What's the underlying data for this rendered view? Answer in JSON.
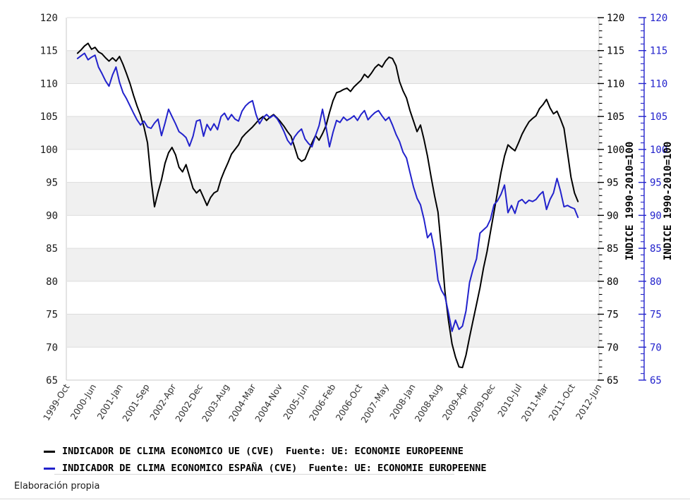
{
  "page": {
    "background": "#ffffff"
  },
  "footer": {
    "text": "Elaboración propia"
  },
  "legend": {
    "items": [
      {
        "label": "INDICADOR DE CLIMA ECONOMICO UE (CVE)  Fuente: UE: ECONOMIE EUROPEENNE",
        "color": "#000000"
      },
      {
        "label": "INDICADOR DE CLIMA ECONOMICO ESPAÑA (CVE)  Fuente: UE: ECONOMIE EUROPEENNE",
        "color": "#2222cc"
      }
    ]
  },
  "chart_data": {
    "type": "line",
    "title": "",
    "frequency": "monthly",
    "grid": true,
    "band_fill_values": [
      70,
      80,
      90,
      100,
      110
    ],
    "colors": {
      "band": "#f0f0f0",
      "grid": "#dcdcdc",
      "border": "#c8c8c8",
      "axis_text": "#1a1a1a",
      "date_text": "#333333",
      "blue_axis": "#2222cc"
    },
    "x_axis": {
      "tick_labels": [
        "1999-Oct",
        "2000-Jun",
        "2001-Jan",
        "2001-Sep",
        "2002-Apr",
        "2002-Dec",
        "2003-Aug",
        "2004-Mar",
        "2004-Nov",
        "2005-Jun",
        "2006-Feb",
        "2006-Oct",
        "2007-May",
        "2008-Jan",
        "2008-Aug",
        "2009-Apr",
        "2009-Dec",
        "2010-Jul",
        "2011-Mar",
        "2011-Oct",
        "2012-Jun"
      ],
      "range_start": "1999-Oct",
      "range_end": "2012-Jun",
      "total_months": 152
    },
    "y_axis_left": {
      "min": 65,
      "max": 120,
      "step": 5,
      "tick_labels": [
        120,
        115,
        110,
        105,
        100,
        95,
        90,
        85,
        80,
        75,
        70,
        65
      ]
    },
    "y_axis_right_black": {
      "min": 65,
      "max": 120,
      "step": 5,
      "minor_step": 1,
      "label": "INDICE 1990-2010=100",
      "color": "#000000"
    },
    "y_axis_right_blue": {
      "min": 65,
      "max": 120,
      "step": 5,
      "minor_step": 1,
      "label": "INDICE 1990-2010=100",
      "color": "#2222cc"
    },
    "series": [
      {
        "name": "INDICADOR DE CLIMA ECONOMICO UE (CVE)",
        "source": "Fuente: UE: ECONOMIE EUROPEENNE",
        "color": "#000000",
        "start": "2000-Jan",
        "end": "2011-Dec",
        "values": [
          114.6,
          115.1,
          115.7,
          116.1,
          115.2,
          115.5,
          114.8,
          114.5,
          113.9,
          113.4,
          113.9,
          113.4,
          114.1,
          112.9,
          111.5,
          110.0,
          108.2,
          106.6,
          105.2,
          103.4,
          101.0,
          95.5,
          91.3,
          93.5,
          95.4,
          97.9,
          99.5,
          100.3,
          99.2,
          97.3,
          96.6,
          97.7,
          95.9,
          94.1,
          93.4,
          93.9,
          92.7,
          91.5,
          92.7,
          93.4,
          93.7,
          95.5,
          96.8,
          98.0,
          99.3,
          100.0,
          100.7,
          101.8,
          102.4,
          102.9,
          103.4,
          104.0,
          104.6,
          105.0,
          104.4,
          104.9,
          105.3,
          104.8,
          104.2,
          103.5,
          102.7,
          102.0,
          100.4,
          98.7,
          98.2,
          98.5,
          99.8,
          101.0,
          102.1,
          101.4,
          102.4,
          103.6,
          105.6,
          107.4,
          108.6,
          108.8,
          109.1,
          109.3,
          108.8,
          109.5,
          110.0,
          110.5,
          111.4,
          110.9,
          111.6,
          112.4,
          112.9,
          112.5,
          113.4,
          114.0,
          113.8,
          112.7,
          110.3,
          108.9,
          107.8,
          105.9,
          104.3,
          102.7,
          103.7,
          101.5,
          99.0,
          95.9,
          93.0,
          90.5,
          84.8,
          78.4,
          74.0,
          70.5,
          68.5,
          67.0,
          66.9,
          68.8,
          71.5,
          74.0,
          76.5,
          79.0,
          82.0,
          84.5,
          87.5,
          90.5,
          93.5,
          96.5,
          99.0,
          100.7,
          100.2,
          99.8,
          101.0,
          102.3,
          103.3,
          104.2,
          104.7,
          105.1,
          106.2,
          106.8,
          107.6,
          106.3,
          105.4,
          105.8,
          104.6,
          103.2,
          99.5,
          95.8,
          93.4,
          92.1
        ]
      },
      {
        "name": "INDICADOR DE CLIMA ECONOMICO ESPAÑA (CVE)",
        "source": "Fuente: UE: ECONOMIE EUROPEENNE",
        "color": "#2222cc",
        "start": "2000-Jan",
        "end": "2011-Dec",
        "values": [
          113.8,
          114.2,
          114.6,
          113.6,
          114.0,
          114.3,
          112.5,
          111.5,
          110.4,
          109.6,
          111.3,
          112.5,
          110.2,
          108.6,
          107.7,
          106.6,
          105.5,
          104.5,
          103.7,
          104.3,
          103.4,
          103.2,
          104.0,
          104.6,
          102.1,
          104.0,
          106.1,
          105.0,
          103.9,
          102.7,
          102.3,
          101.8,
          100.5,
          102.0,
          104.3,
          104.5,
          102.0,
          103.8,
          102.9,
          103.9,
          103.0,
          105.0,
          105.5,
          104.5,
          105.3,
          104.6,
          104.3,
          105.8,
          106.6,
          107.1,
          107.4,
          105.3,
          103.9,
          104.8,
          105.3,
          104.8,
          105.2,
          104.7,
          103.8,
          102.7,
          101.4,
          100.7,
          101.9,
          102.6,
          103.1,
          101.6,
          100.9,
          100.4,
          102.1,
          103.6,
          106.1,
          103.4,
          100.4,
          102.6,
          104.4,
          104.1,
          104.9,
          104.4,
          104.7,
          105.1,
          104.4,
          105.3,
          105.9,
          104.5,
          105.1,
          105.6,
          105.9,
          105.1,
          104.4,
          104.9,
          103.7,
          102.3,
          101.2,
          99.6,
          98.7,
          96.5,
          94.3,
          92.6,
          91.6,
          89.4,
          86.6,
          87.3,
          84.6,
          80.2,
          78.6,
          77.7,
          75.2,
          72.4,
          74.1,
          72.7,
          73.2,
          75.5,
          79.8,
          81.8,
          83.4,
          87.3,
          87.8,
          88.3,
          89.4,
          91.6,
          92.2,
          93.2,
          94.6,
          90.4,
          91.5,
          90.3,
          92.1,
          92.4,
          91.8,
          92.3,
          92.1,
          92.4,
          93.1,
          93.6,
          90.9,
          92.4,
          93.4,
          95.6,
          93.7,
          91.3,
          91.5,
          91.2,
          91.0,
          89.7
        ]
      }
    ]
  }
}
